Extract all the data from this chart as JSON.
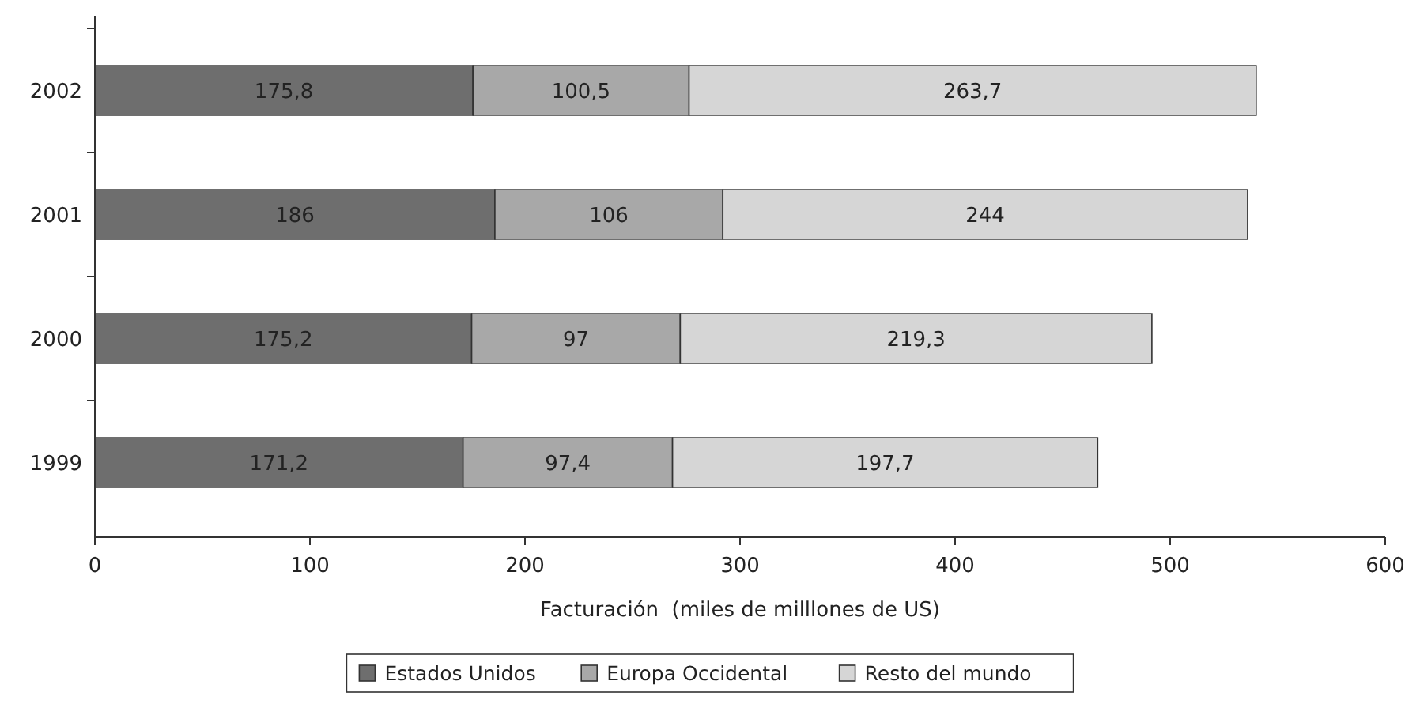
{
  "chart_data": {
    "type": "bar",
    "orientation": "horizontal",
    "stacked": true,
    "categories": [
      "2002",
      "2001",
      "2000",
      "1999"
    ],
    "series": [
      {
        "name": "Estados Unidos",
        "color": "#6e6e6e",
        "values": [
          175.8,
          186,
          175.2,
          171.2
        ],
        "value_labels": [
          "175,8",
          "186",
          "175,2",
          "171,2"
        ]
      },
      {
        "name": "Europa Occidental",
        "color": "#a8a8a8",
        "values": [
          100.5,
          106,
          97,
          97.4
        ],
        "value_labels": [
          "100,5",
          "106",
          "97",
          "97,4"
        ]
      },
      {
        "name": "Resto del mundo",
        "color": "#d6d6d6",
        "values": [
          263.7,
          244,
          219.3,
          197.7
        ],
        "value_labels": [
          "263,7",
          "244",
          "219,3",
          "197,7"
        ]
      }
    ],
    "xlabel": "Facturación  (miles de milllones de US)",
    "xlim": [
      0,
      600
    ],
    "xticks": [
      0,
      100,
      200,
      300,
      400,
      500,
      600
    ],
    "grid": false,
    "legend": "bottom"
  }
}
